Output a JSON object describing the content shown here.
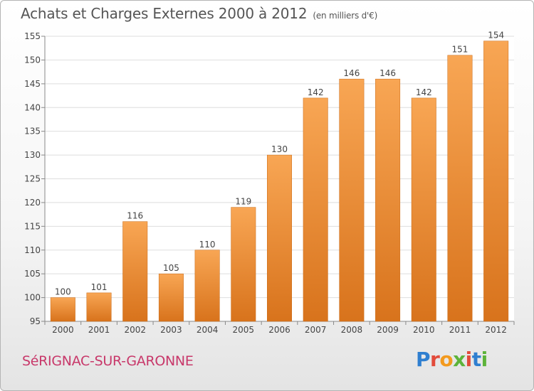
{
  "chart_data": {
    "type": "bar",
    "title": "Achats et Charges Externes 2000 à 2012",
    "subtitle": "(en milliers d'€)",
    "categories": [
      "2000",
      "2001",
      "2002",
      "2003",
      "2004",
      "2005",
      "2006",
      "2007",
      "2008",
      "2009",
      "2010",
      "2011",
      "2012"
    ],
    "values": [
      100,
      101,
      116,
      105,
      110,
      119,
      130,
      142,
      146,
      146,
      142,
      151,
      154
    ],
    "ylim": [
      95,
      155
    ],
    "yticks": [
      95,
      100,
      105,
      110,
      115,
      120,
      125,
      130,
      135,
      140,
      145,
      150,
      155
    ],
    "xlabel": "",
    "ylabel": "",
    "grid": true,
    "data_labels": true
  },
  "footer": {
    "commune": "SéRIGNAC-SUR-GARONNE"
  },
  "logo": {
    "letters": [
      {
        "char": "P",
        "color": "#2f7fd0"
      },
      {
        "char": "r",
        "color": "#e24b3b"
      },
      {
        "char": "o",
        "color": "#f39a1e"
      },
      {
        "char": "x",
        "color": "#5db33a"
      },
      {
        "char": "i",
        "color": "#e24b3b"
      },
      {
        "char": "t",
        "color": "#2f7fd0"
      },
      {
        "char": "i",
        "color": "#5db33a"
      }
    ]
  },
  "colors": {
    "bar_top": "#f8a654",
    "bar_bottom": "#d8731c",
    "axis_text": "#444444",
    "grid": "#dedede"
  }
}
